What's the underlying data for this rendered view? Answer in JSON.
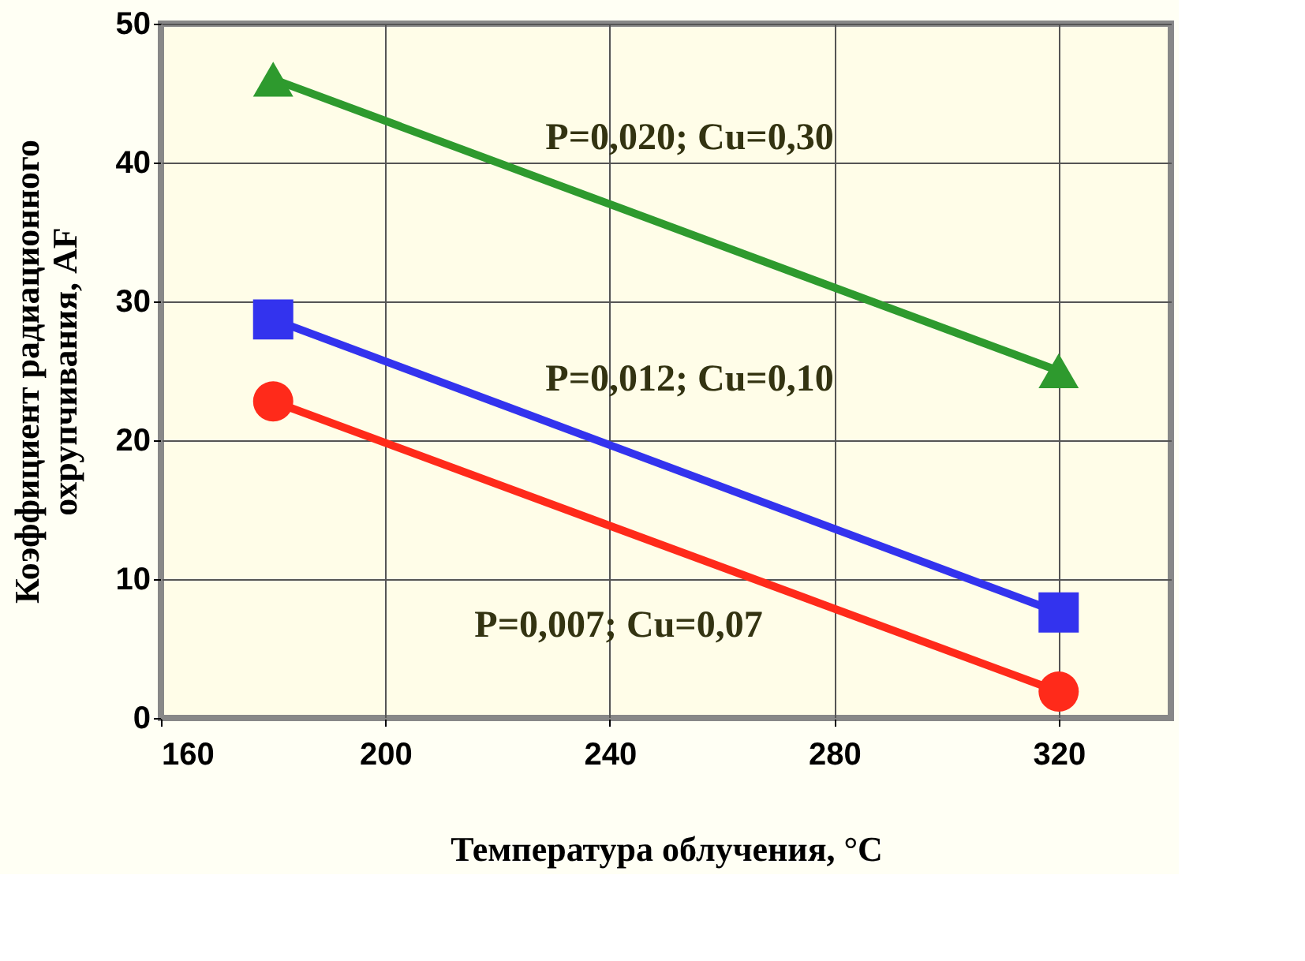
{
  "chart_data": {
    "type": "line",
    "xlabel": "Температура облучения, °C",
    "ylabel": "Коэффициент радиационного охрупчивания, AF",
    "x": [
      180,
      320
    ],
    "series": [
      {
        "name": "P=0,020; Cu=0,30",
        "color": "#2e9a2e",
        "marker": "triangle",
        "values": [
          46,
          25
        ]
      },
      {
        "name": "P=0,012; Cu=0,10",
        "color": "#3333ee",
        "marker": "square",
        "values": [
          28.7,
          7.6
        ]
      },
      {
        "name": "P=0,007; Cu=0,07",
        "color": "#ff2a1a",
        "marker": "circle",
        "values": [
          22.8,
          1.9
        ]
      }
    ],
    "xlim": [
      160,
      340
    ],
    "xticks": [
      160,
      200,
      240,
      280,
      320
    ],
    "ylim": [
      0,
      50
    ],
    "yticks": [
      0,
      10,
      20,
      30,
      40,
      50
    ],
    "grid": true,
    "line_style": "solid"
  }
}
